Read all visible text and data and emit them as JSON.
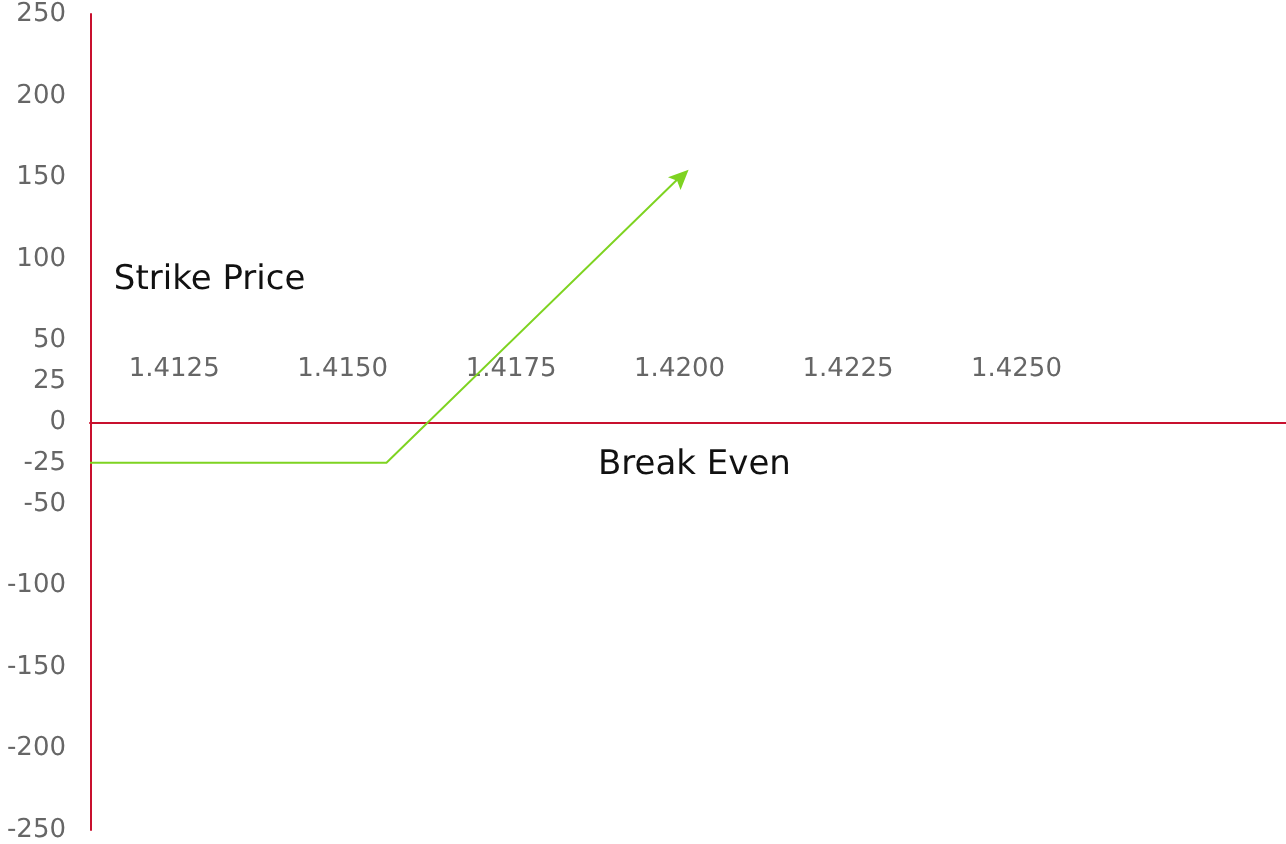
{
  "chart_data": {
    "type": "line",
    "x": [
      1.41125,
      1.41565,
      1.42
    ],
    "series": [
      {
        "color": "#7ed321",
        "values": [
          -25,
          -25,
          150
        ]
      }
    ],
    "xlim": [
      1.41125,
      1.429
    ],
    "xticks": [
      {
        "value": 1.4125,
        "label": "1.4125"
      },
      {
        "value": 1.415,
        "label": "1.4150"
      },
      {
        "value": 1.4175,
        "label": "1.4175"
      },
      {
        "value": 1.42,
        "label": "1.4200"
      },
      {
        "value": 1.4225,
        "label": "1.4225"
      },
      {
        "value": 1.425,
        "label": "1.4250"
      }
    ],
    "ylim": [
      -250,
      250
    ],
    "yticks": [
      -250,
      -200,
      -150,
      -100,
      -50,
      -25,
      0,
      25,
      50,
      100,
      150,
      200,
      250
    ],
    "grid": false,
    "marker": "none",
    "line_style": "solid",
    "annotations": [
      "Strike Price",
      "Break Even"
    ]
  }
}
